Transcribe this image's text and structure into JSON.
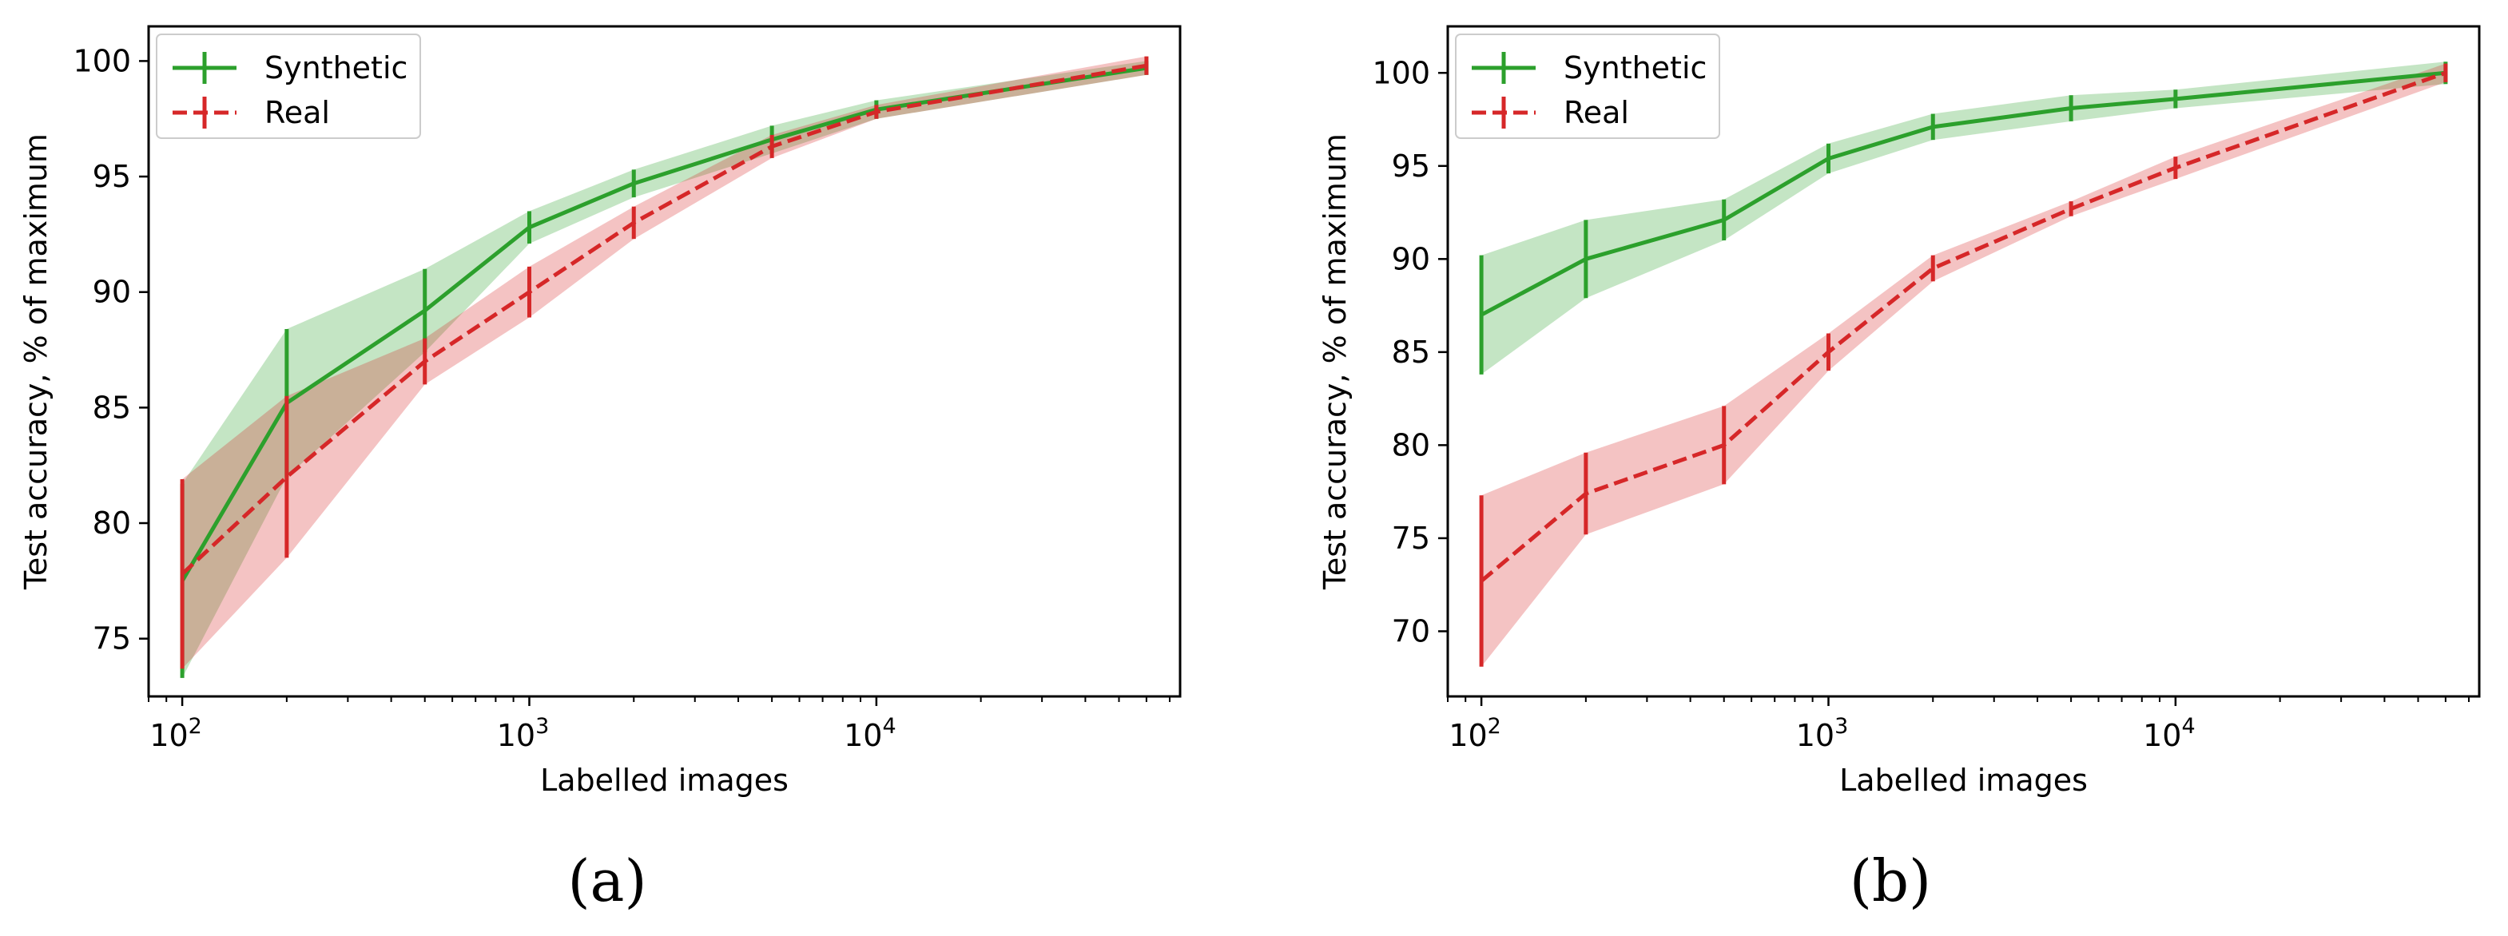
{
  "chart_data": [
    {
      "type": "line",
      "caption": "(a)",
      "xlabel": "Labelled images",
      "ylabel": "Test accuracy, % of maximum",
      "xscale": "log",
      "xlim": [
        80,
        75000
      ],
      "ylim": [
        72.5,
        101.5
      ],
      "yticks": [
        75,
        80,
        85,
        90,
        95,
        100
      ],
      "xticks": [
        {
          "value": 100,
          "base": "10",
          "exp": "2"
        },
        {
          "value": 1000,
          "base": "10",
          "exp": "3"
        },
        {
          "value": 10000,
          "base": "10",
          "exp": "4"
        }
      ],
      "legend_position": "top-left",
      "x": [
        100,
        200,
        500,
        1000,
        2000,
        5000,
        10000,
        60000
      ],
      "series": [
        {
          "name": "Synthetic",
          "color": "#2ca02c",
          "linestyle": "solid",
          "values": [
            77.5,
            85.2,
            89.2,
            92.8,
            94.7,
            96.6,
            97.9,
            99.7
          ],
          "error": [
            4.2,
            3.2,
            1.8,
            0.7,
            0.6,
            0.6,
            0.4,
            0.3
          ]
        },
        {
          "name": "Real",
          "color": "#d62728",
          "linestyle": "dashed",
          "values": [
            77.8,
            82.0,
            87.0,
            90.0,
            93.0,
            96.3,
            97.8,
            99.8
          ],
          "error": [
            4.1,
            3.5,
            1.0,
            1.1,
            0.7,
            0.5,
            0.3,
            0.4
          ]
        }
      ]
    },
    {
      "type": "line",
      "caption": "(b)",
      "xlabel": "Labelled images",
      "ylabel": "Test accuracy, % of maximum",
      "xscale": "log",
      "xlim": [
        80,
        75000
      ],
      "ylim": [
        66.5,
        102.5
      ],
      "yticks": [
        70,
        75,
        80,
        85,
        90,
        95,
        100
      ],
      "xticks": [
        {
          "value": 100,
          "base": "10",
          "exp": "2"
        },
        {
          "value": 1000,
          "base": "10",
          "exp": "3"
        },
        {
          "value": 10000,
          "base": "10",
          "exp": "4"
        }
      ],
      "legend_position": "top-left",
      "x": [
        100,
        200,
        500,
        1000,
        2000,
        5000,
        10000,
        60000
      ],
      "series": [
        {
          "name": "Synthetic",
          "color": "#2ca02c",
          "linestyle": "solid",
          "values": [
            87.0,
            90.0,
            92.1,
            95.4,
            97.1,
            98.1,
            98.6,
            100.0
          ],
          "error": [
            3.2,
            2.1,
            1.1,
            0.8,
            0.7,
            0.7,
            0.5,
            0.6
          ]
        },
        {
          "name": "Real",
          "color": "#d62728",
          "linestyle": "dashed",
          "values": [
            72.7,
            77.4,
            80.0,
            85.0,
            89.5,
            92.7,
            94.9,
            100.0
          ],
          "error": [
            4.6,
            2.2,
            2.1,
            1.0,
            0.7,
            0.4,
            0.6,
            0.5
          ]
        }
      ]
    }
  ]
}
